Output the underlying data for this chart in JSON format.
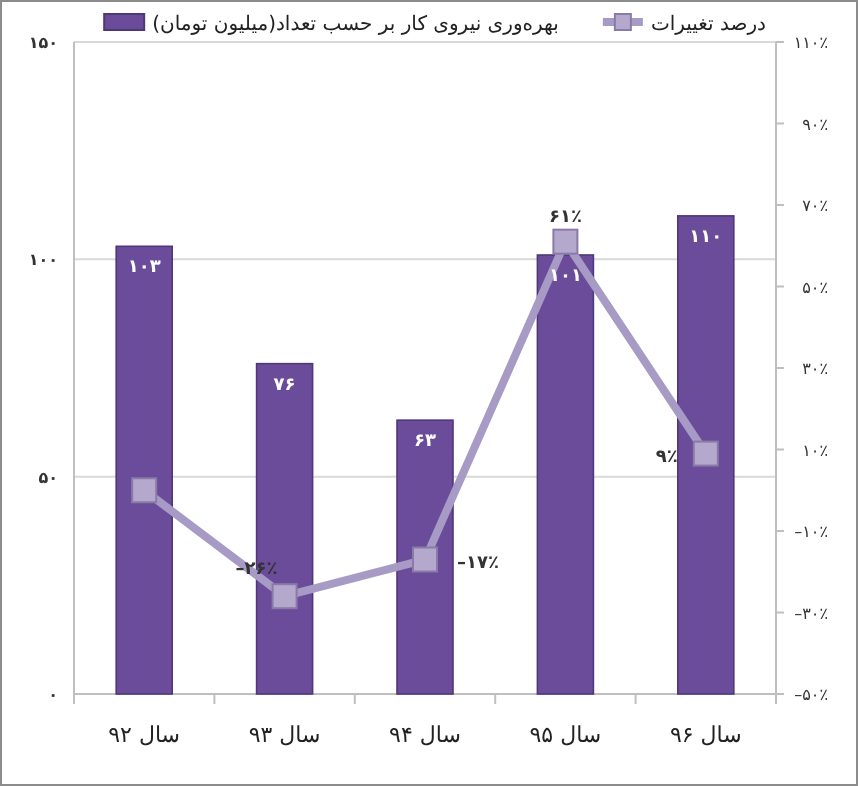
{
  "chart_data": {
    "type": "bar",
    "categories": [
      "سال ۹۲",
      "سال ۹۳",
      "سال ۹۴",
      "سال ۹۵",
      "سال ۹۶"
    ],
    "series": [
      {
        "name": "بهره‌وری نیروی کار بر حسب تعداد(میلیون تومان)",
        "color": "#6b4c9a",
        "values": [
          103,
          76,
          63,
          101,
          110
        ],
        "value_labels": [
          "۱۰۳",
          "۷۶",
          "۶۳",
          "۱۰۱",
          "۱۱۰"
        ]
      },
      {
        "name": "درصد تغییرات",
        "type": "line",
        "axis": "y2",
        "color": "#a79bc6",
        "marker": "square",
        "values": [
          0,
          -26,
          -17,
          61,
          9
        ],
        "value_labels": [
          null,
          "–۲۶٪",
          "–۱۷٪",
          "۶۱٪",
          "۹٪"
        ]
      }
    ],
    "ylim": [
      0,
      150
    ],
    "yticks": [
      {
        "value": 0,
        "label": "۰"
      },
      {
        "value": 50,
        "label": "۵۰"
      },
      {
        "value": 100,
        "label": "۱۰۰"
      },
      {
        "value": 150,
        "label": "۱۵۰"
      }
    ],
    "y2lim": [
      -50,
      110
    ],
    "y2ticks": [
      {
        "value": -50,
        "label": "–۵۰٪"
      },
      {
        "value": -30,
        "label": "–۳۰٪"
      },
      {
        "value": -10,
        "label": "–۱۰٪"
      },
      {
        "value": 10,
        "label": "۱۰٪"
      },
      {
        "value": 30,
        "label": "۳۰٪"
      },
      {
        "value": 50,
        "label": "۵۰٪"
      },
      {
        "value": 70,
        "label": "۷۰٪"
      },
      {
        "value": 90,
        "label": "۹۰٪"
      },
      {
        "value": 110,
        "label": "۱۱۰٪"
      }
    ],
    "grid": "y",
    "legend": "top"
  }
}
